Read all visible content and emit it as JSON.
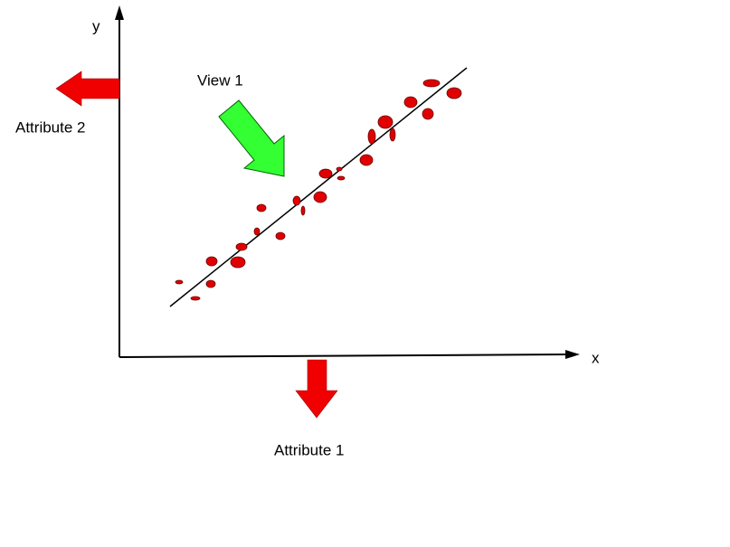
{
  "axes": {
    "y_label": "y",
    "x_label": "x"
  },
  "annotations": {
    "view": "View 1",
    "attribute_2": "Attribute 2",
    "attribute_1": "Attribute 1"
  }
}
